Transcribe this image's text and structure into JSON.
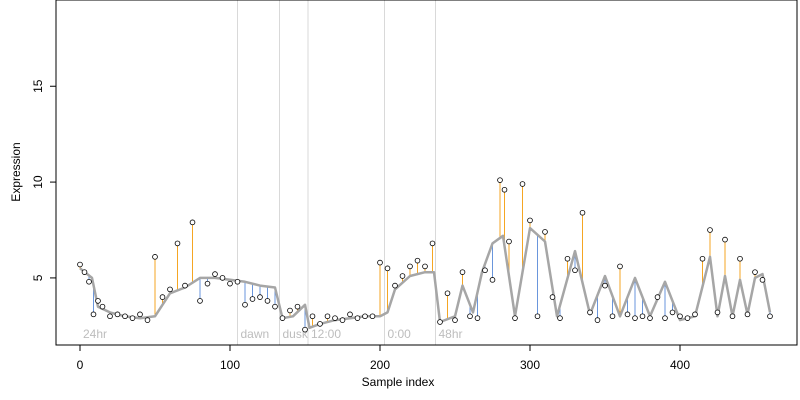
{
  "chart_data": {
    "type": "line",
    "title": "",
    "xlabel": "Sample index",
    "ylabel": "Expression",
    "xlim": [
      -16,
      478
    ],
    "ylim": [
      1.5,
      19.5
    ],
    "xticks": [
      0,
      100,
      200,
      300,
      400
    ],
    "yticks": [
      5,
      10,
      15
    ],
    "grid": false,
    "legend": "none",
    "colors": {
      "fitted_line": "#a6a6a6",
      "residual_positive": "#f5a623",
      "residual_negative": "#6a96dc",
      "point_stroke": "#000000",
      "region_line": "#d9d9d9",
      "region_label": "#bdbdbd"
    },
    "regions": [
      {
        "x": 0,
        "label": "24hr"
      },
      {
        "x": 105,
        "label": "dawn"
      },
      {
        "x": 133,
        "label": "dusk"
      },
      {
        "x": 152,
        "label": "12:00"
      },
      {
        "x": 203,
        "label": "0:00"
      },
      {
        "x": 237,
        "label": "48hr"
      }
    ],
    "series": [
      {
        "role": "fitted",
        "x": [
          0,
          8,
          12,
          20,
          30,
          40,
          50,
          60,
          70,
          80,
          90,
          100,
          110,
          120,
          130,
          135,
          142,
          150,
          153,
          160,
          170,
          180,
          190,
          200,
          205,
          210,
          220,
          230,
          236,
          240,
          250,
          255,
          262,
          268,
          275,
          282,
          290,
          300,
          310,
          318,
          330,
          340,
          350,
          360,
          370,
          380,
          390,
          400,
          405,
          410,
          420,
          425,
          430,
          435,
          440,
          445,
          450,
          455,
          460
        ],
        "y": [
          5.5,
          5.0,
          3.5,
          3.2,
          3.0,
          2.9,
          3.0,
          4.2,
          4.5,
          5.0,
          5.0,
          4.9,
          4.8,
          4.6,
          4.5,
          2.9,
          3.0,
          3.6,
          2.4,
          2.6,
          2.8,
          2.9,
          3.0,
          3.0,
          3.2,
          4.4,
          5.1,
          5.3,
          5.3,
          2.7,
          3.0,
          4.6,
          3.2,
          5.3,
          6.8,
          7.2,
          3.0,
          7.6,
          6.9,
          3.0,
          6.4,
          3.1,
          5.1,
          3.0,
          5.0,
          3.0,
          4.8,
          2.8,
          2.9,
          3.0,
          6.1,
          3.0,
          5.1,
          3.0,
          4.9,
          3.1,
          5.0,
          5.2,
          3.2
        ]
      },
      {
        "role": "observed",
        "x": [
          0,
          3,
          6,
          9,
          12,
          15,
          20,
          25,
          30,
          35,
          40,
          45,
          50,
          55,
          60,
          65,
          70,
          75,
          80,
          85,
          90,
          95,
          100,
          105,
          110,
          115,
          120,
          125,
          130,
          135,
          140,
          145,
          150,
          155,
          160,
          165,
          170,
          175,
          180,
          185,
          190,
          195,
          200,
          205,
          210,
          215,
          220,
          225,
          230,
          235,
          240,
          245,
          250,
          255,
          260,
          265,
          270,
          275,
          280,
          283,
          286,
          290,
          295,
          300,
          305,
          310,
          315,
          320,
          325,
          330,
          335,
          340,
          345,
          350,
          355,
          360,
          365,
          370,
          375,
          380,
          385,
          390,
          395,
          400,
          405,
          410,
          415,
          420,
          425,
          430,
          435,
          440,
          445,
          450,
          455,
          460
        ],
        "y": [
          5.7,
          5.3,
          4.8,
          3.1,
          3.8,
          3.5,
          3.0,
          3.1,
          3.0,
          2.9,
          3.1,
          2.8,
          6.1,
          4.0,
          4.4,
          6.8,
          4.6,
          7.9,
          3.8,
          4.7,
          5.2,
          5.0,
          4.7,
          4.8,
          3.6,
          3.9,
          4.0,
          3.8,
          3.5,
          2.9,
          3.3,
          3.5,
          2.3,
          3.0,
          2.6,
          3.0,
          2.9,
          2.8,
          3.1,
          2.9,
          3.0,
          3.0,
          5.8,
          5.5,
          4.6,
          5.1,
          5.6,
          5.9,
          5.6,
          6.8,
          2.7,
          4.2,
          2.8,
          5.3,
          3.0,
          2.9,
          5.4,
          4.9,
          10.1,
          9.6,
          6.9,
          2.9,
          9.9,
          8.0,
          3.0,
          7.4,
          4.0,
          2.9,
          6.0,
          5.4,
          8.4,
          3.2,
          2.8,
          4.6,
          3.0,
          5.6,
          3.1,
          2.9,
          3.0,
          2.9,
          4.0,
          2.9,
          3.2,
          3.0,
          2.9,
          3.1,
          6.0,
          7.5,
          3.2,
          7.0,
          3.0,
          6.0,
          3.1,
          5.3,
          4.9,
          3.0
        ]
      }
    ]
  }
}
